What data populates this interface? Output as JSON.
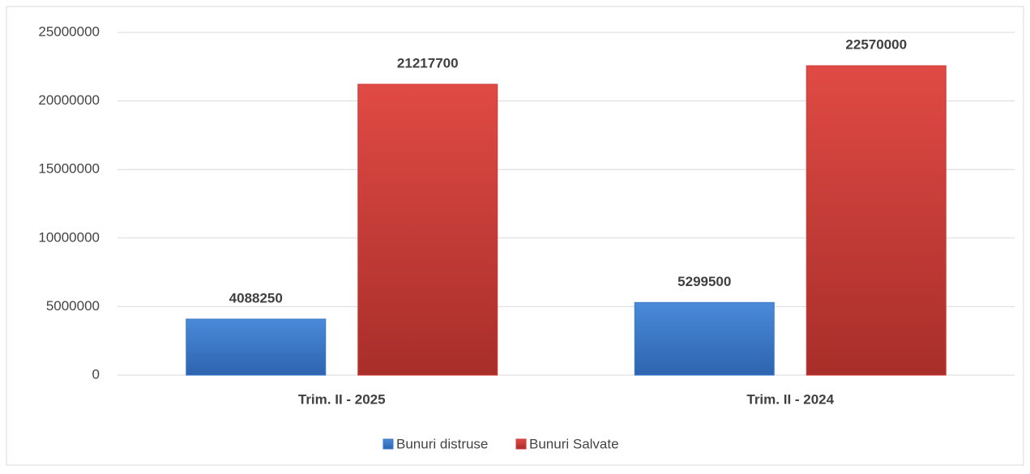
{
  "chart_data": {
    "type": "bar",
    "categories": [
      "Trim. II - 2025",
      "Trim. II - 2024"
    ],
    "series": [
      {
        "name": "Bunuri distruse",
        "color": "#3b78c9",
        "values": [
          4088250,
          5299500
        ]
      },
      {
        "name": "Bunuri Salvate",
        "color": "#cf3a36",
        "values": [
          21217700,
          22570000
        ]
      }
    ],
    "ylim": [
      0,
      25000000
    ],
    "yticks": [
      0,
      5000000,
      10000000,
      15000000,
      20000000,
      25000000
    ],
    "grid": true,
    "legend": "bottom"
  }
}
